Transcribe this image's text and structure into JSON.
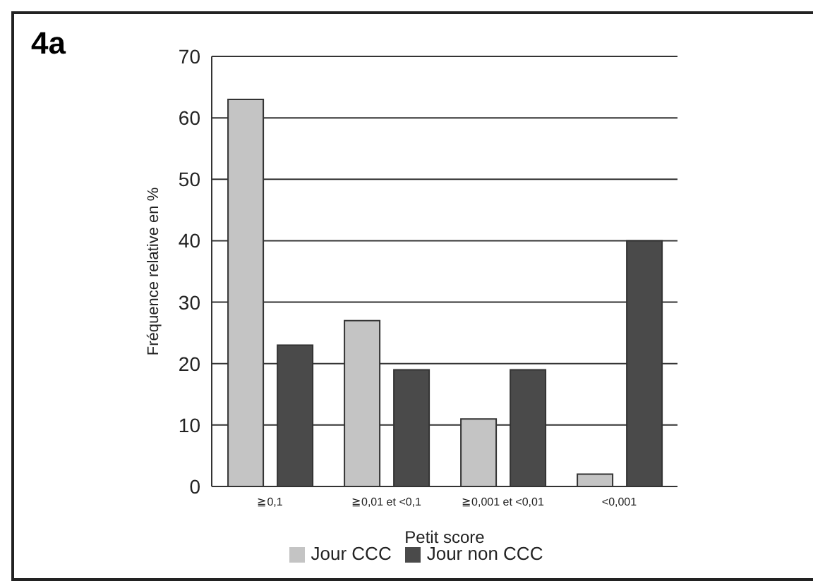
{
  "chart_data": {
    "type": "bar",
    "title": "4a",
    "xlabel": "Petit score",
    "ylabel": "Fréquence relative en %",
    "categories": [
      "≧0,1",
      "≧0,01 et <0,1",
      "≧0,001 et <0,01",
      "<0,001"
    ],
    "series": [
      {
        "name": "Jour CCC",
        "color": "#c4c4c4",
        "values": [
          63,
          27,
          11,
          2
        ]
      },
      {
        "name": "Jour non CCC",
        "color": "#4a4a4a",
        "values": [
          23,
          19,
          19,
          40
        ]
      }
    ],
    "ylim": [
      0,
      70
    ],
    "yticks": [
      0,
      10,
      20,
      30,
      40,
      50,
      60,
      70
    ],
    "grid": "y",
    "legend": "bottom"
  }
}
